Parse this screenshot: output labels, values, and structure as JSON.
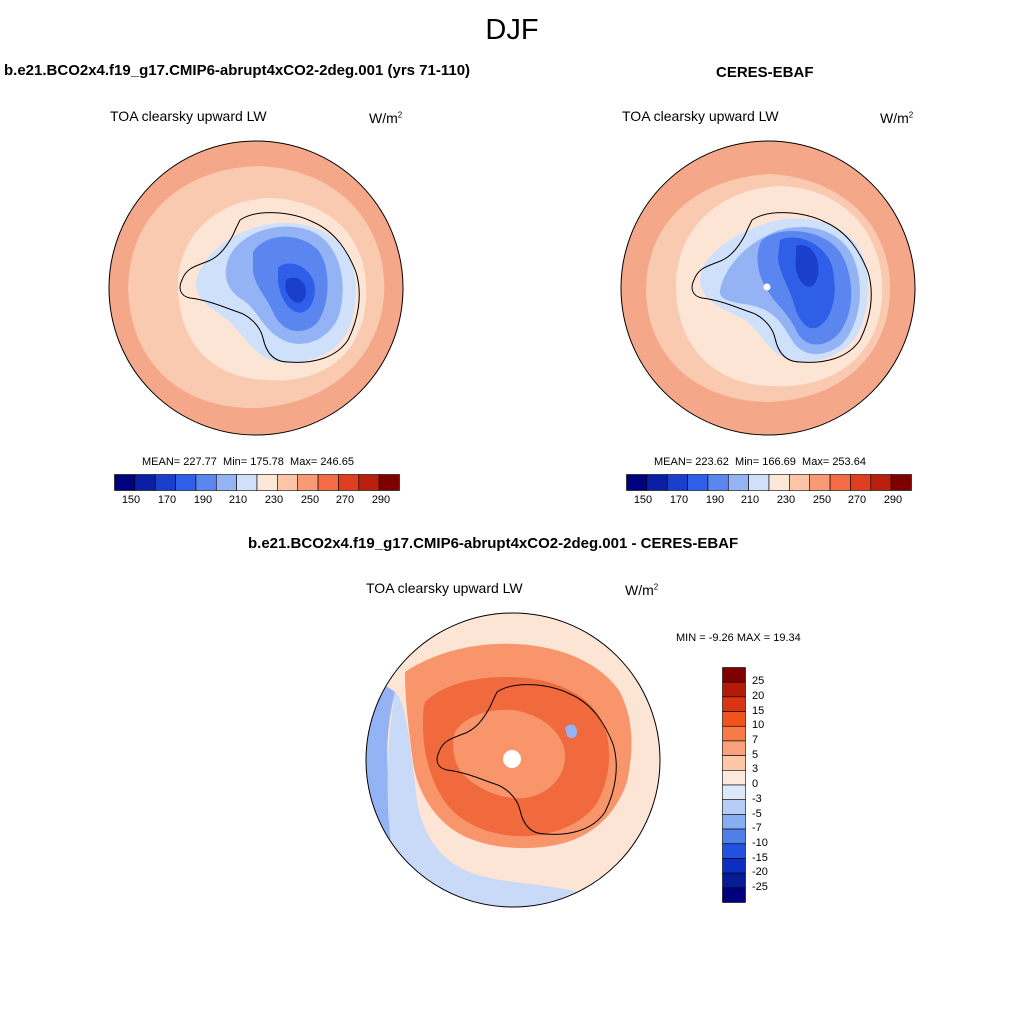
{
  "season": "DJF",
  "panels": {
    "model": {
      "title": "b.e21.BCO2x4.f19_g17.CMIP6-abrupt4xCO2-2deg.001 (yrs 71-110)",
      "variable": "TOA clearsky upward LW",
      "units_base": "W/m",
      "units_exp": "2",
      "stats": {
        "mean": "227.77",
        "min": "175.78",
        "max": "246.65"
      }
    },
    "obs": {
      "title": "CERES-EBAF",
      "variable": "TOA clearsky upward LW",
      "units_base": "W/m",
      "units_exp": "2",
      "stats": {
        "mean": "223.62",
        "min": "166.69",
        "max": "253.64"
      }
    },
    "diff": {
      "title": "b.e21.BCO2x4.f19_g17.CMIP6-abrupt4xCO2-2deg.001 - CERES-EBAF",
      "variable": "TOA clearsky upward LW",
      "units_base": "W/m",
      "units_exp": "2",
      "min_label": "MIN = ",
      "min_value": "-9.26",
      "max_label": "MAX = ",
      "max_value": "19.34"
    }
  },
  "labels": {
    "mean_prefix": "MEAN= ",
    "min_prefix": "Min= ",
    "max_prefix": "Max= "
  },
  "colorbar_abs": {
    "ticks": [
      "150",
      "170",
      "190",
      "210",
      "230",
      "250",
      "270",
      "290"
    ],
    "colors": [
      "#00007f",
      "#0a1fa3",
      "#1a3fcc",
      "#2f5ee8",
      "#5b86f0",
      "#93b3f5",
      "#cfe0fa",
      "#fde7d9",
      "#fbc5a6",
      "#f89a74",
      "#f36c45",
      "#e03f1f",
      "#b81f0c",
      "#7f0000"
    ]
  },
  "colorbar_diff": {
    "ticks": [
      "25",
      "20",
      "15",
      "10",
      "7",
      "5",
      "3",
      "0",
      "-3",
      "-5",
      "-7",
      "-10",
      "-15",
      "-20",
      "-25"
    ],
    "colors": [
      "#7f0000",
      "#b41a08",
      "#d93512",
      "#f2521c",
      "#f77a48",
      "#faa07a",
      "#fcc7a6",
      "#fde8db",
      "#dde9fb",
      "#b5cdf7",
      "#86aef1",
      "#4f7fe8",
      "#2251e0",
      "#0c2fc2",
      "#061b96",
      "#00007f"
    ]
  },
  "map_colors": {
    "ocean_outer": "#f5a889",
    "ocean_mid": "#f9c9b0",
    "ocean_near": "#fde5d6",
    "ice_light": "#cfe0fa",
    "ice_mid": "#93b3f5",
    "ice_core": "#5b86f0",
    "ice_deep": "#2f5ee8",
    "ice_deepest": "#1a3fcc",
    "diff_bg": "#fde5d6",
    "diff_orange": "#f8956a",
    "diff_red": "#f06a3e",
    "diff_blue_light": "#c8daf7",
    "diff_blue": "#93b3f5"
  }
}
